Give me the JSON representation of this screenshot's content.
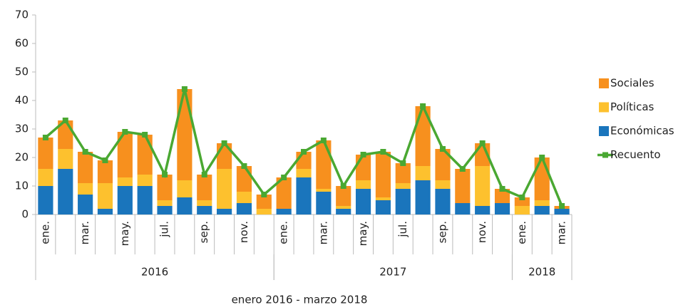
{
  "chart_data": {
    "type": "bar",
    "stacked": true,
    "x_label": "enero 2016 - marzo 2018",
    "categories": [
      "ene.",
      null,
      "mar.",
      null,
      "may.",
      null,
      "jul.",
      null,
      "sep.",
      null,
      "nov.",
      null,
      "ene.",
      null,
      "mar.",
      null,
      "may.",
      null,
      "jul.",
      null,
      "sep.",
      null,
      "nov.",
      null,
      "ene.",
      null,
      "mar."
    ],
    "x_groups": [
      {
        "label": "2016",
        "span": 12
      },
      {
        "label": "2017",
        "span": 12
      },
      {
        "label": "2018",
        "span": 3
      }
    ],
    "series": [
      {
        "name": "Económicas",
        "color": "#1a75bc",
        "values": [
          10,
          16,
          7,
          2,
          10,
          10,
          3,
          6,
          3,
          2,
          4,
          0,
          2,
          13,
          8,
          2,
          9,
          5,
          9,
          12,
          9,
          4,
          3,
          4,
          0,
          3,
          2
        ]
      },
      {
        "name": "Políticas",
        "color": "#fdc12e",
        "values": [
          6,
          7,
          4,
          9,
          3,
          4,
          2,
          6,
          2,
          14,
          4,
          2,
          0,
          3,
          1,
          1,
          3,
          1,
          2,
          5,
          3,
          0,
          14,
          0,
          3,
          2,
          0
        ]
      },
      {
        "name": "Sociales",
        "color": "#f7901e",
        "values": [
          11,
          10,
          11,
          8,
          16,
          14,
          9,
          32,
          9,
          9,
          9,
          5,
          11,
          6,
          17,
          7,
          9,
          16,
          7,
          21,
          11,
          12,
          8,
          5,
          3,
          15,
          1
        ]
      },
      {
        "name": "Recuento",
        "color": "#4aa832",
        "type": "line",
        "values": [
          27,
          33,
          22,
          19,
          29,
          28,
          14,
          44,
          14,
          25,
          17,
          7,
          13,
          22,
          26,
          10,
          21,
          22,
          18,
          38,
          23,
          16,
          25,
          9,
          6,
          20,
          3
        ]
      }
    ],
    "ylim": [
      0,
      70
    ],
    "yticks": [
      0,
      10,
      20,
      30,
      40,
      50,
      60,
      70
    ],
    "grid": false,
    "legend": "right"
  }
}
